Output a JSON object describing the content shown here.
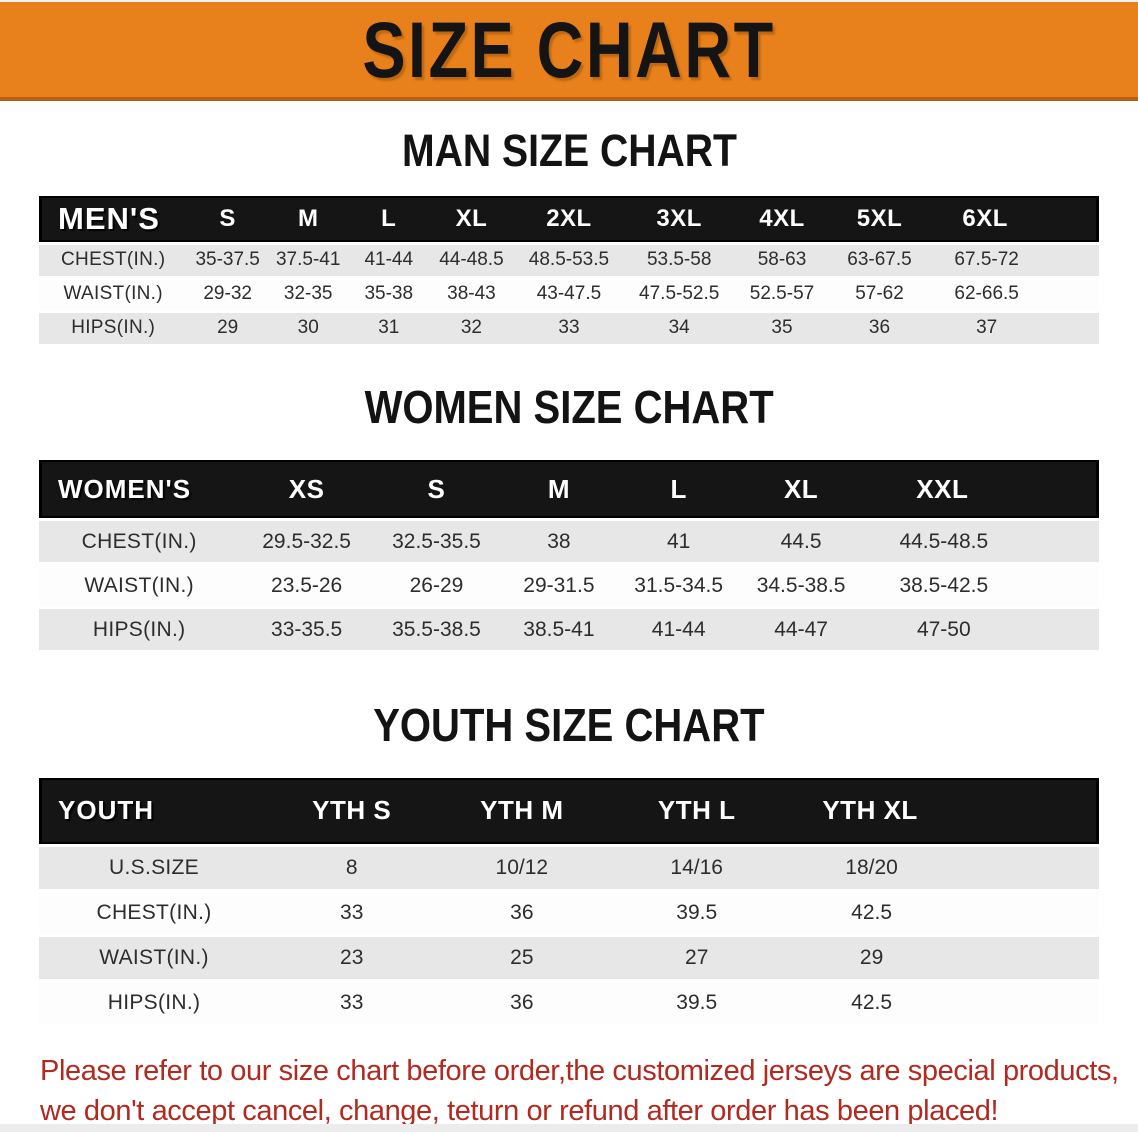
{
  "banner": {
    "title": "SIZE CHART"
  },
  "colors": {
    "banner_orange": "#E8811B",
    "banner_border": "#BA5F10",
    "bar_black": "#151515",
    "stripe_gray": "#E7E7E7",
    "note_red": "#B22A1F",
    "bar_text": "#FFFFFF",
    "body_text": "#2D2D2D"
  },
  "sections": [
    {
      "heading": "MAN SIZE CHART",
      "table": {
        "header_label": "MEN'S",
        "columns": [
          "S",
          "M",
          "L",
          "XL",
          "2XL",
          "3XL",
          "4XL",
          "5XL",
          "6XL"
        ],
        "rows": [
          {
            "label": "CHEST(IN.)",
            "shade": "gray",
            "values": [
              "35-37.5",
              "37.5-41",
              "41-44",
              "44-48.5",
              "48.5-53.5",
              "53.5-58",
              "58-63",
              "63-67.5",
              "67.5-72"
            ]
          },
          {
            "label": "WAIST(IN.)",
            "shade": "white",
            "values": [
              "29-32",
              "32-35",
              "35-38",
              "38-43",
              "43-47.5",
              "47.5-52.5",
              "52.5-57",
              "57-62",
              "62-66.5"
            ]
          },
          {
            "label": "HIPS(IN.)",
            "shade": "gray",
            "values": [
              "29",
              "30",
              "31",
              "32",
              "33",
              "34",
              "35",
              "36",
              "37"
            ]
          }
        ]
      }
    },
    {
      "heading": "WOMEN SIZE CHART",
      "table": {
        "header_label": "WOMEN'S",
        "columns": [
          "XS",
          "S",
          "M",
          "L",
          "XL",
          "XXL"
        ],
        "rows": [
          {
            "label": "CHEST(IN.)",
            "shade": "gray",
            "values": [
              "29.5-32.5",
              "32.5-35.5",
              "38",
              "41",
              "44.5",
              "44.5-48.5"
            ]
          },
          {
            "label": "WAIST(IN.)",
            "shade": "white",
            "values": [
              "23.5-26",
              "26-29",
              "29-31.5",
              "31.5-34.5",
              "34.5-38.5",
              "38.5-42.5"
            ]
          },
          {
            "label": "HIPS(IN.)",
            "shade": "gray",
            "values": [
              "33-35.5",
              "35.5-38.5",
              "38.5-41",
              "41-44",
              "44-47",
              "47-50"
            ]
          }
        ]
      }
    },
    {
      "heading": "YOUTH SIZE CHART",
      "table": {
        "header_label": "YOUTH",
        "columns": [
          "YTH S",
          "YTH M",
          "YTH L",
          "YTH XL"
        ],
        "rows": [
          {
            "label": "U.S.SIZE",
            "shade": "gray",
            "values": [
              "8",
              "10/12",
              "14/16",
              "18/20"
            ]
          },
          {
            "label": "CHEST(IN.)",
            "shade": "white",
            "values": [
              "33",
              "36",
              "39.5",
              "42.5"
            ]
          },
          {
            "label": "WAIST(IN.)",
            "shade": "gray",
            "values": [
              "23",
              "25",
              "27",
              "29"
            ]
          },
          {
            "label": "HIPS(IN.)",
            "shade": "white",
            "values": [
              "33",
              "36",
              "39.5",
              "42.5"
            ]
          }
        ]
      }
    }
  ],
  "footer": {
    "line1": "Please refer to our size chart before order,the customized jerseys are special products,",
    "line2": "we don't accept cancel, change, teturn or refund after order has been placed!"
  }
}
